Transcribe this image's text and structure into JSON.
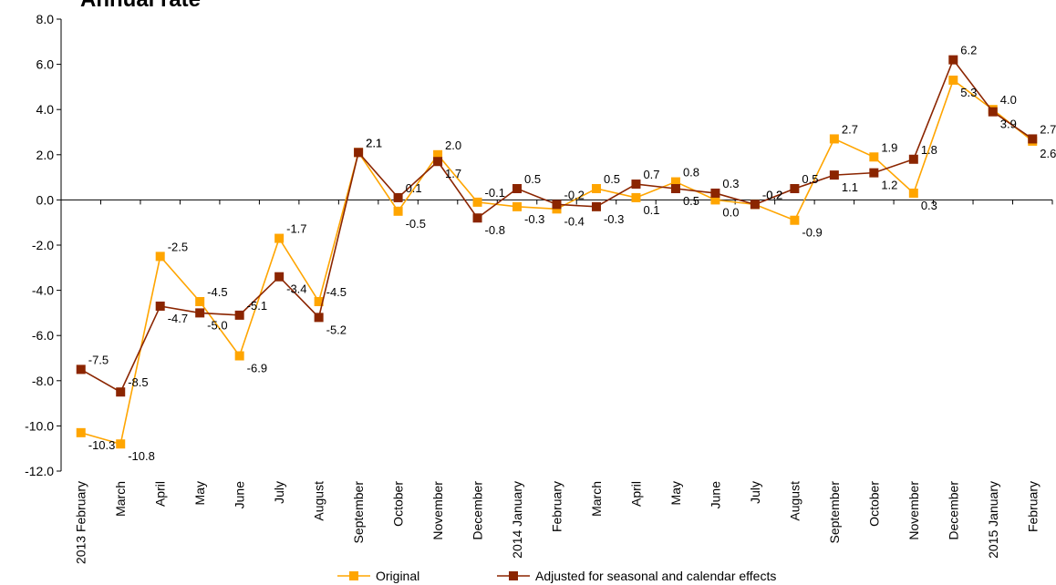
{
  "chart_data": {
    "type": "line",
    "title": "Annual rate",
    "xlabel": "",
    "ylabel": "",
    "ylim": [
      -12.0,
      8.0
    ],
    "yticks": [
      "8.0",
      "6.0",
      "4.0",
      "2.0",
      "0.0",
      "-2.0",
      "-4.0",
      "-6.0",
      "-8.0",
      "-10.0",
      "-12.0"
    ],
    "categories": [
      "2013 February",
      "March",
      "April",
      "May",
      "June",
      "July",
      "August",
      "September",
      "October",
      "November",
      "December",
      "2014 January",
      "February",
      "March",
      "April",
      "May",
      "June",
      "July",
      "August",
      "September",
      "October",
      "November",
      "December",
      "2015 January",
      "February"
    ],
    "series": [
      {
        "name": "Original",
        "color": "#FFA500",
        "values": [
          -10.3,
          -10.8,
          -2.5,
          -4.5,
          -6.9,
          -1.7,
          -4.5,
          2.1,
          -0.5,
          2.0,
          -0.1,
          -0.3,
          -0.4,
          0.5,
          0.1,
          0.8,
          0.0,
          -0.2,
          -0.9,
          2.7,
          1.9,
          0.3,
          5.3,
          4.0,
          2.6
        ]
      },
      {
        "name": "Adjusted for seasonal and calendar effects",
        "color": "#8B2500",
        "values": [
          -7.5,
          -8.5,
          -4.7,
          -5.0,
          -5.1,
          -3.4,
          -5.2,
          2.1,
          0.1,
          1.7,
          -0.8,
          0.5,
          -0.2,
          -0.3,
          0.7,
          0.5,
          0.3,
          -0.2,
          0.5,
          1.1,
          1.2,
          1.8,
          6.2,
          3.9,
          2.7
        ]
      }
    ],
    "grid": false,
    "legend_position": "bottom"
  }
}
